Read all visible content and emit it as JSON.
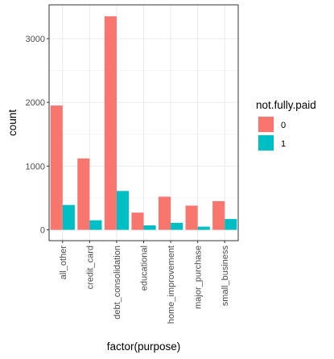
{
  "chart_data": {
    "type": "bar",
    "title": "",
    "xlabel": "factor(purpose)",
    "ylabel": "count",
    "categories": [
      "all_other",
      "credit_card",
      "debt_consolidation",
      "educational",
      "home_improvement",
      "major_purchase",
      "small_business"
    ],
    "series": [
      {
        "name": "0",
        "values": [
          1950,
          1120,
          3350,
          270,
          520,
          380,
          450
        ]
      },
      {
        "name": "1",
        "values": [
          390,
          150,
          610,
          70,
          110,
          50,
          170
        ]
      }
    ],
    "ylim": [
      -170,
      3530
    ],
    "yticks": [
      0,
      1000,
      2000,
      3000
    ],
    "grid": true,
    "legend": {
      "title": "not.fully.paid",
      "placement": "right"
    },
    "colors": [
      "#F8766D",
      "#00BFC4"
    ]
  }
}
